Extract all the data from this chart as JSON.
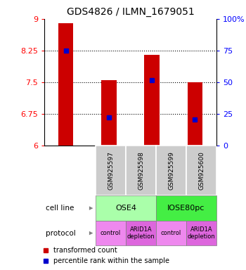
{
  "title": "GDS4826 / ILMN_1679051",
  "samples": [
    "GSM925597",
    "GSM925598",
    "GSM925599",
    "GSM925600"
  ],
  "bar_values": [
    8.9,
    7.55,
    8.15,
    7.5
  ],
  "blue_marker_values": [
    8.25,
    6.68,
    7.55,
    6.63
  ],
  "ymin": 6,
  "ymax": 9,
  "yticks_left": [
    6,
    6.75,
    7.5,
    8.25,
    9
  ],
  "ytick_labels_left": [
    "6",
    "6.75",
    "7.5",
    "8.25",
    "9"
  ],
  "yticks_right": [
    6,
    6.75,
    7.5,
    8.25,
    9
  ],
  "ytick_labels_right": [
    "0",
    "25",
    "50",
    "75",
    "100%"
  ],
  "bar_color": "#cc0000",
  "marker_color": "#0000cc",
  "bar_width": 0.35,
  "cell_line_labels": [
    "OSE4",
    "IOSE80pc"
  ],
  "cell_line_spans": [
    [
      0,
      1
    ],
    [
      2,
      3
    ]
  ],
  "cell_line_colors": [
    "#aaffaa",
    "#44ee44"
  ],
  "protocol_labels": [
    "control",
    "ARID1A\ndepletion",
    "control",
    "ARID1A\ndepletion"
  ],
  "protocol_colors": [
    "#ee88ee",
    "#dd66dd",
    "#ee88ee",
    "#dd66dd"
  ],
  "sample_box_color": "#cccccc",
  "legend_red_label": "transformed count",
  "legend_blue_label": "percentile rank within the sample",
  "title_fontsize": 10,
  "tick_fontsize": 8,
  "gridline_ticks": [
    6.75,
    7.5,
    8.25
  ],
  "left_label_cell_line": "cell line",
  "left_label_protocol": "protocol"
}
